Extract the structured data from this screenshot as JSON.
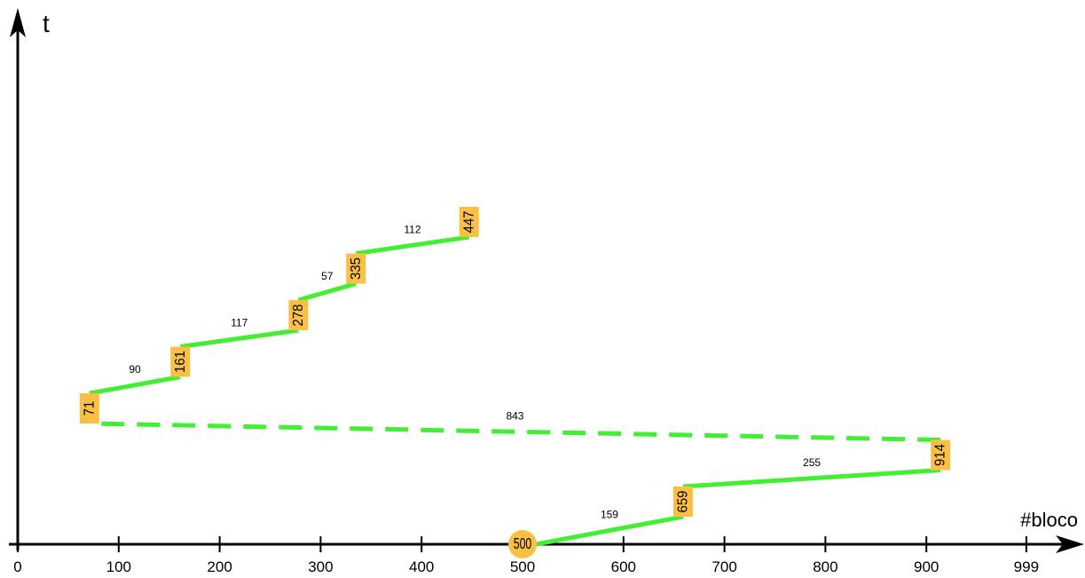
{
  "chart_data": {
    "type": "line",
    "title": "",
    "xlabel": "#bloco",
    "ylabel": "t",
    "xlim": [
      0,
      999
    ],
    "x_ticks": [
      "0",
      "100",
      "200",
      "300",
      "400",
      "500",
      "600",
      "700",
      "800",
      "900",
      "999"
    ],
    "start": "500",
    "sequence": [
      "500",
      "659",
      "914",
      "71",
      "161",
      "278",
      "335",
      "447"
    ],
    "blocks": [
      500,
      659,
      914,
      71,
      161,
      278,
      335,
      447
    ],
    "segments": [
      {
        "from": 500,
        "to": 659,
        "distance": "159",
        "style": "solid"
      },
      {
        "from": 659,
        "to": 914,
        "distance": "255",
        "style": "solid"
      },
      {
        "from": 914,
        "to": 71,
        "distance": "843",
        "style": "dashed"
      },
      {
        "from": 71,
        "to": 161,
        "distance": "90",
        "style": "solid"
      },
      {
        "from": 161,
        "to": 278,
        "distance": "117",
        "style": "solid"
      },
      {
        "from": 278,
        "to": 335,
        "distance": "57",
        "style": "solid"
      },
      {
        "from": 335,
        "to": 447,
        "distance": "112",
        "style": "solid"
      }
    ],
    "colors": {
      "line": "#44ee33",
      "node": "#f9c043",
      "axis": "#000000"
    },
    "grid": false
  }
}
